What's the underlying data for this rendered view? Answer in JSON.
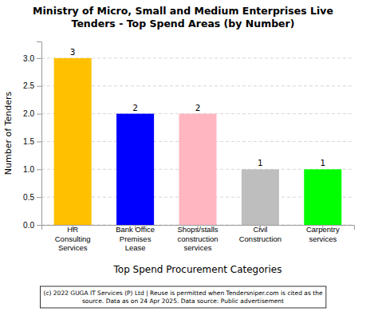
{
  "chart_data": {
    "type": "bar",
    "title": "Ministry of Micro, Small and Medium Enterprises Live\nTenders - Top Spend Areas (by Number)",
    "xlabel": "Top Spend Procurement Categories",
    "ylabel": "Number of Tenders",
    "categories": [
      "HR\nConsulting\nServices",
      "Bank Office\nPremises\nLease",
      "Shops/stalls\nconstruction\nservices",
      "Civil\nConstruction",
      "Carpentry\nservices"
    ],
    "values": [
      3,
      2,
      2,
      1,
      1
    ],
    "colors": [
      "#FFC000",
      "#0000FF",
      "#FFB6C1",
      "#BEBEBE",
      "#00FF00"
    ],
    "ylim": [
      0,
      3.3
    ],
    "yticks": [
      {
        "value": 0.0,
        "label": "0.0"
      },
      0.5,
      {
        "value": 1.0,
        "label": "1.0"
      },
      1.5,
      {
        "value": 2.0,
        "label": "2.0"
      },
      2.5,
      {
        "value": 3.0,
        "label": "3.0"
      }
    ],
    "grid": true,
    "data_labels": true,
    "footnote": "(c) 2022 GUGA IT Services (P) Ltd | Reuse is permitted when Tendersniper.com is cited as the\nsource. Data as on 24 Apr 2025. Data source: Public advertisement"
  }
}
